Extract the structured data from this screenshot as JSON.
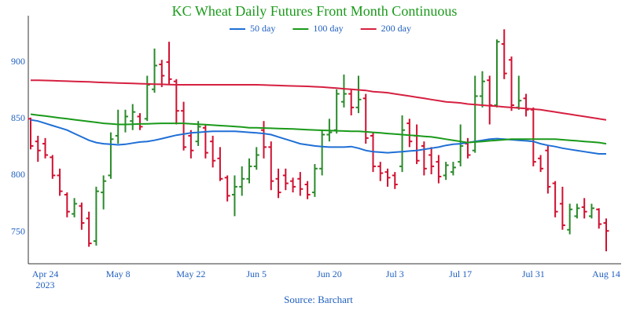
{
  "chart_data": {
    "type": "ohlc",
    "title": "KC Wheat Daily Futures Front Month Continuous",
    "source": "Source: Barchart",
    "up_color": "#2a8a2a",
    "down_color": "#d01030",
    "legend_position": "top",
    "grid": false,
    "x": [
      "2023-04-20",
      "2023-04-21",
      "2023-04-24",
      "2023-04-25",
      "2023-04-26",
      "2023-04-27",
      "2023-04-28",
      "2023-05-01",
      "2023-05-02",
      "2023-05-03",
      "2023-05-04",
      "2023-05-05",
      "2023-05-08",
      "2023-05-09",
      "2023-05-10",
      "2023-05-11",
      "2023-05-12",
      "2023-05-15",
      "2023-05-16",
      "2023-05-17",
      "2023-05-18",
      "2023-05-19",
      "2023-05-22",
      "2023-05-23",
      "2023-05-24",
      "2023-05-25",
      "2023-05-26",
      "2023-05-30",
      "2023-05-31",
      "2023-06-01",
      "2023-06-02",
      "2023-06-05",
      "2023-06-06",
      "2023-06-07",
      "2023-06-08",
      "2023-06-09",
      "2023-06-12",
      "2023-06-13",
      "2023-06-14",
      "2023-06-15",
      "2023-06-16",
      "2023-06-20",
      "2023-06-21",
      "2023-06-22",
      "2023-06-23",
      "2023-06-26",
      "2023-06-27",
      "2023-06-28",
      "2023-06-29",
      "2023-06-30",
      "2023-07-03",
      "2023-07-05",
      "2023-07-06",
      "2023-07-07",
      "2023-07-10",
      "2023-07-11",
      "2023-07-12",
      "2023-07-13",
      "2023-07-14",
      "2023-07-17",
      "2023-07-18",
      "2023-07-19",
      "2023-07-20",
      "2023-07-21",
      "2023-07-24",
      "2023-07-25",
      "2023-07-26",
      "2023-07-27",
      "2023-07-28",
      "2023-07-31",
      "2023-08-01",
      "2023-08-02",
      "2023-08-03",
      "2023-08-04",
      "2023-08-07",
      "2023-08-08",
      "2023-08-09",
      "2023-08-10",
      "2023-08-11",
      "2023-08-14"
    ],
    "open": [
      850,
      830,
      828,
      816,
      800,
      783,
      766,
      773,
      762,
      742,
      785,
      800,
      835,
      845,
      848,
      852,
      850,
      876,
      898,
      900,
      883,
      857,
      835,
      830,
      842,
      830,
      815,
      798,
      783,
      790,
      797,
      808,
      840,
      825,
      797,
      800,
      795,
      797,
      792,
      785,
      806,
      836,
      840,
      865,
      872,
      860,
      868,
      835,
      808,
      803,
      800,
      808,
      846,
      835,
      826,
      818,
      812,
      800,
      803,
      812,
      828,
      822,
      870,
      884,
      862,
      916,
      902,
      860,
      868,
      858,
      815,
      822,
      793,
      775,
      752,
      764,
      772,
      764,
      770,
      758
    ],
    "high": [
      851,
      835,
      833,
      818,
      806,
      785,
      780,
      776,
      768,
      790,
      800,
      838,
      858,
      858,
      863,
      855,
      888,
      912,
      902,
      918,
      885,
      865,
      840,
      848,
      845,
      835,
      825,
      800,
      800,
      808,
      815,
      825,
      848,
      830,
      806,
      806,
      798,
      803,
      795,
      810,
      840,
      850,
      876,
      889,
      876,
      888,
      872,
      838,
      812,
      806,
      803,
      853,
      850,
      845,
      830,
      825,
      818,
      812,
      812,
      845,
      833,
      888,
      892,
      888,
      920,
      929,
      905,
      888,
      872,
      860,
      818,
      827,
      795,
      790,
      775,
      775,
      780,
      775,
      771,
      762
    ],
    "low": [
      823,
      812,
      815,
      797,
      782,
      763,
      763,
      752,
      737,
      738,
      770,
      797,
      828,
      838,
      840,
      840,
      848,
      873,
      878,
      880,
      845,
      822,
      815,
      826,
      815,
      807,
      795,
      777,
      764,
      782,
      793,
      805,
      815,
      787,
      780,
      787,
      785,
      782,
      779,
      781,
      800,
      830,
      837,
      860,
      853,
      855,
      828,
      803,
      795,
      790,
      788,
      803,
      825,
      810,
      800,
      801,
      793,
      796,
      800,
      808,
      815,
      820,
      860,
      845,
      860,
      885,
      857,
      858,
      852,
      808,
      803,
      784,
      763,
      752,
      748,
      762,
      762,
      762,
      753,
      733
    ],
    "close": [
      826,
      822,
      818,
      800,
      786,
      768,
      775,
      758,
      740,
      786,
      795,
      832,
      845,
      852,
      856,
      843,
      880,
      897,
      888,
      885,
      857,
      825,
      822,
      843,
      820,
      813,
      797,
      782,
      790,
      797,
      808,
      818,
      825,
      795,
      785,
      793,
      790,
      788,
      783,
      806,
      836,
      838,
      872,
      872,
      860,
      867,
      833,
      808,
      802,
      798,
      792,
      840,
      830,
      813,
      806,
      808,
      799,
      809,
      807,
      826,
      818,
      870,
      883,
      862,
      918,
      890,
      862,
      866,
      858,
      812,
      806,
      790,
      768,
      756,
      770,
      771,
      768,
      771,
      757,
      751
    ],
    "series": [
      {
        "name": "50 day",
        "color": "#1f6fd6",
        "values": [
          849,
          848,
          846,
          844,
          842,
          840,
          837,
          834,
          831,
          829,
          828,
          827.5,
          827,
          827.5,
          828.5,
          829.5,
          830,
          831,
          832.5,
          834,
          835.5,
          836.5,
          837.5,
          838,
          838.5,
          839,
          839,
          839,
          839,
          838.5,
          838,
          837.5,
          837,
          836,
          834,
          832,
          830,
          828,
          827,
          826,
          825.5,
          825,
          825,
          825,
          825.5,
          824,
          822,
          821,
          820.5,
          820,
          820.5,
          821,
          821.5,
          822,
          823,
          824,
          825,
          826.5,
          827.5,
          828,
          829,
          830,
          831,
          832,
          832.5,
          832,
          831.5,
          831,
          830.5,
          830,
          828,
          826.5,
          825.5,
          824,
          823,
          822,
          821,
          820,
          819,
          819
        ]
      },
      {
        "name": "100 day",
        "color": "#1a9a1a",
        "values": [
          854,
          853.2,
          852.4,
          851.6,
          850.8,
          850,
          849.2,
          848.4,
          847.6,
          846.8,
          846,
          845.5,
          845,
          845,
          845.2,
          845.4,
          845.6,
          845.8,
          846,
          846,
          846,
          846,
          845.6,
          845.2,
          844.8,
          844.4,
          844,
          843.6,
          843.2,
          842.8,
          842,
          842,
          841.8,
          841.6,
          841.4,
          841.2,
          841,
          840.7,
          840.4,
          840.1,
          839.8,
          839.6,
          839.4,
          839.2,
          839,
          839,
          838.5,
          838,
          837.5,
          837,
          836.5,
          836,
          835.5,
          835,
          834.5,
          834,
          833,
          832,
          831,
          830,
          829,
          829.5,
          830,
          830.5,
          831,
          831.5,
          832,
          832,
          832,
          832,
          832,
          832,
          832,
          831.5,
          831,
          830.5,
          830,
          829.5,
          829,
          828
        ]
      },
      {
        "name": "200 day",
        "color": "#d62040",
        "values": [
          884,
          884,
          883.8,
          883.6,
          883.4,
          883.2,
          883,
          882.8,
          882.6,
          882.3,
          882,
          881.8,
          881.6,
          881.4,
          881.2,
          881,
          880.8,
          880.6,
          880.4,
          880.2,
          880,
          880,
          880,
          880,
          880,
          880,
          880,
          880,
          880,
          880,
          880,
          880,
          879.8,
          879.6,
          879.4,
          879.2,
          879,
          878.8,
          878.6,
          878.3,
          878,
          877.5,
          877,
          876.5,
          876,
          875.5,
          875,
          874,
          873.5,
          873,
          872,
          871,
          870,
          869,
          868,
          867,
          866,
          865,
          864.5,
          864,
          863,
          862.5,
          862,
          861.5,
          861,
          860.5,
          860,
          859.5,
          859,
          858.5,
          858,
          857,
          856,
          855,
          854,
          853,
          852,
          851,
          850,
          849
        ]
      }
    ],
    "ylim": [
      722,
      941
    ],
    "yticks": [
      750,
      800,
      850,
      900
    ],
    "xticks": [
      {
        "value": "2023-04-24",
        "label": "Apr 24\n2023"
      },
      {
        "value": "2023-05-08",
        "label": "May 8"
      },
      {
        "value": "2023-05-22",
        "label": "May 22"
      },
      {
        "value": "2023-06-05",
        "label": "Jun 5"
      },
      {
        "value": "2023-06-20",
        "label": "Jun 20"
      },
      {
        "value": "2023-07-03",
        "label": "Jul 3"
      },
      {
        "value": "2023-07-17",
        "label": "Jul 17"
      },
      {
        "value": "2023-07-31",
        "label": "Jul 31"
      },
      {
        "value": "2023-08-14",
        "label": "Aug 14"
      }
    ]
  }
}
